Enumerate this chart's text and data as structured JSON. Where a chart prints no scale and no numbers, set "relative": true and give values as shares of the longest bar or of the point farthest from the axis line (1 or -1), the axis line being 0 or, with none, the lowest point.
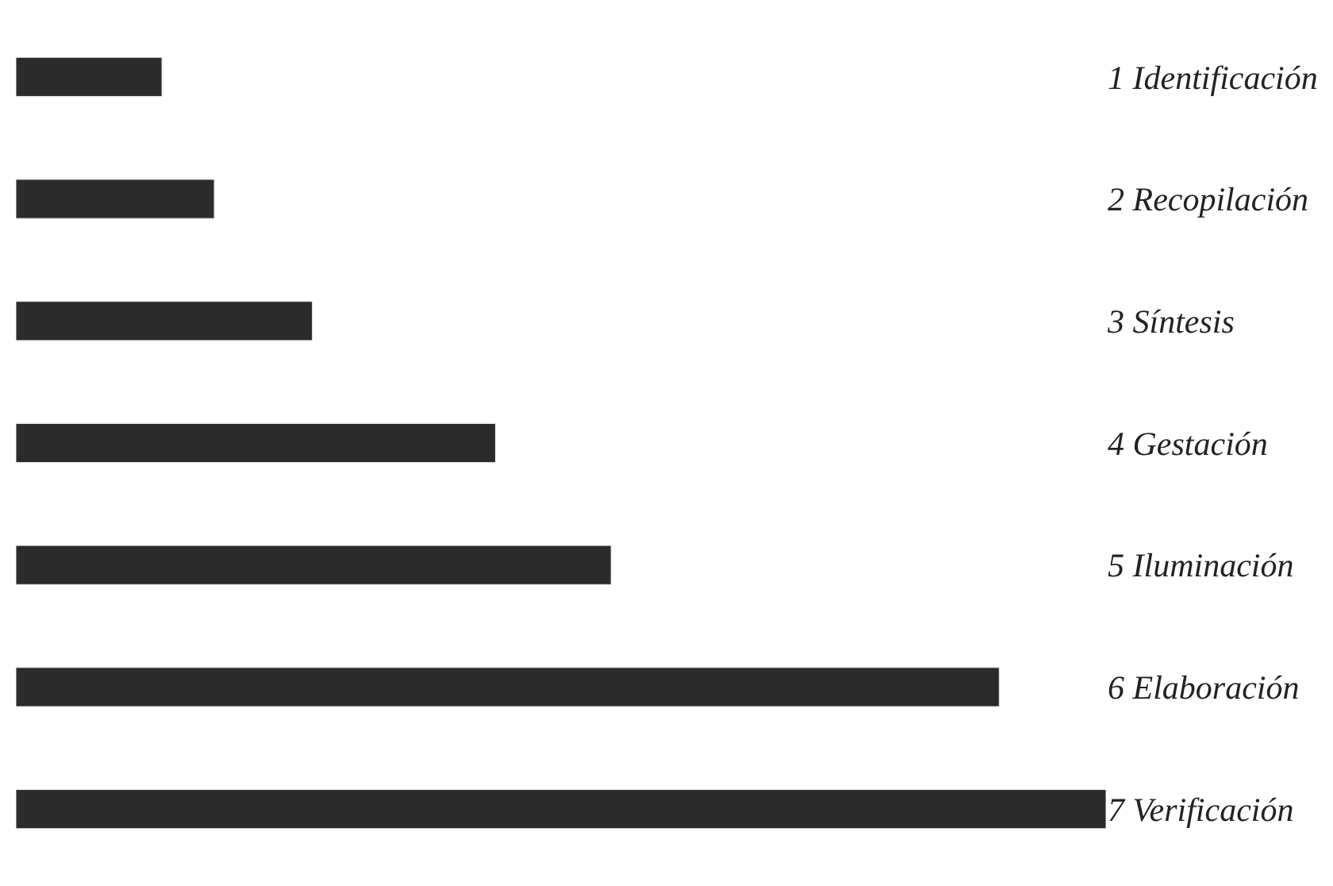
{
  "chart_data": {
    "type": "bar",
    "orientation": "horizontal",
    "relative": true,
    "categories": [
      "1 Identificación",
      "2 Recopilación",
      "3 Síntesis",
      "4 Gestación",
      "5 Iluminación",
      "6 Elaboración",
      "7 Verificación"
    ],
    "values": [
      0.134,
      0.182,
      0.272,
      0.44,
      0.546,
      0.902,
      1.0
    ],
    "color": "#2b2b2b"
  }
}
